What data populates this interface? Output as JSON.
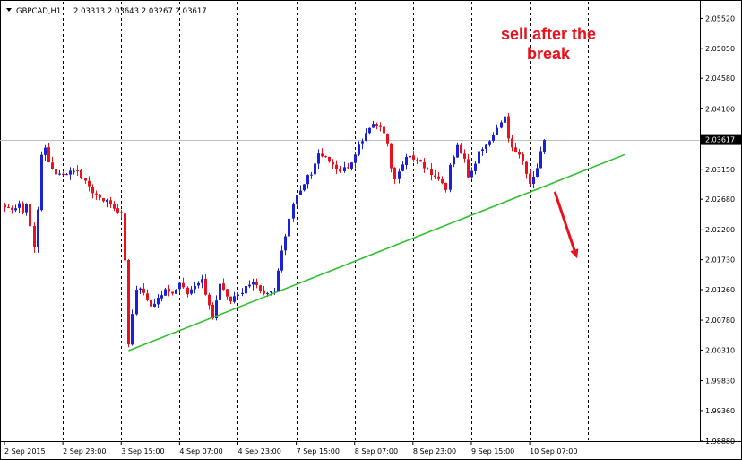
{
  "header": {
    "symbol": "GBPCAD,H1",
    "ohlc": "2.03313 2.03643 2.03267 2.03617"
  },
  "colors": {
    "bull": "#1a22d8",
    "bear": "#e8111c",
    "trendline": "#2ec12e",
    "annotation": "#e8111c",
    "axis": "#000000",
    "grid": "#000000",
    "price_line": "#c0c0c0"
  },
  "chart_data": {
    "type": "candlestick",
    "title": "",
    "xlabel": "",
    "ylabel": "",
    "ylim": [
      1.9888,
      2.0578
    ],
    "y_ticks": [
      "2.05520",
      "2.05050",
      "2.04580",
      "2.04100",
      "2.03617",
      "2.03150",
      "2.02680",
      "2.02200",
      "2.01730",
      "2.01260",
      "2.00780",
      "2.00310",
      "1.99830",
      "1.99360",
      "1.98880"
    ],
    "x_ticks": [
      "2 Sep 2015",
      "2 Sep 23:00",
      "3 Sep 15:00",
      "4 Sep 07:00",
      "4 Sep 23:00",
      "7 Sep 15:00",
      "8 Sep 07:00",
      "8 Sep 23:00",
      "9 Sep 15:00",
      "10 Sep 07:00"
    ],
    "x_tick_positions": [
      0,
      16,
      32,
      48,
      64,
      80,
      96,
      112,
      128,
      144
    ],
    "current_price": 2.03617,
    "anchors": [
      [
        0,
        2.0255
      ],
      [
        2,
        2.025
      ],
      [
        4,
        2.0262
      ],
      [
        5,
        2.025
      ],
      [
        6,
        2.026
      ],
      [
        8,
        2.0195
      ],
      [
        9,
        2.0255
      ],
      [
        10,
        2.034
      ],
      [
        11,
        2.035
      ],
      [
        12,
        2.0325
      ],
      [
        14,
        2.031
      ],
      [
        16,
        2.0305
      ],
      [
        18,
        2.0315
      ],
      [
        20,
        2.031
      ],
      [
        22,
        2.0295
      ],
      [
        24,
        2.0275
      ],
      [
        26,
        2.027
      ],
      [
        28,
        2.0265
      ],
      [
        30,
        2.0255
      ],
      [
        32,
        2.0245
      ],
      [
        33,
        2.0175
      ],
      [
        34,
        2.004
      ],
      [
        35,
        2.0085
      ],
      [
        36,
        2.0125
      ],
      [
        37,
        2.013
      ],
      [
        38,
        2.012
      ],
      [
        39,
        2.011
      ],
      [
        40,
        2.01
      ],
      [
        42,
        2.0115
      ],
      [
        44,
        2.0125
      ],
      [
        46,
        2.0122
      ],
      [
        48,
        2.0135
      ],
      [
        50,
        2.012
      ],
      [
        52,
        2.013
      ],
      [
        54,
        2.0145
      ],
      [
        55,
        2.012
      ],
      [
        56,
        2.01
      ],
      [
        57,
        2.008
      ],
      [
        58,
        2.011
      ],
      [
        59,
        2.0135
      ],
      [
        60,
        2.0125
      ],
      [
        62,
        2.011
      ],
      [
        64,
        2.0115
      ],
      [
        66,
        2.013
      ],
      [
        68,
        2.014
      ],
      [
        70,
        2.0125
      ],
      [
        72,
        2.012
      ],
      [
        74,
        2.0125
      ],
      [
        76,
        2.0185
      ],
      [
        78,
        2.024
      ],
      [
        80,
        2.0275
      ],
      [
        82,
        2.0295
      ],
      [
        84,
        2.031
      ],
      [
        86,
        2.034
      ],
      [
        88,
        2.0335
      ],
      [
        90,
        2.032
      ],
      [
        92,
        2.0315
      ],
      [
        94,
        2.0315
      ],
      [
        96,
        2.034
      ],
      [
        98,
        2.036
      ],
      [
        100,
        2.038
      ],
      [
        102,
        2.0385
      ],
      [
        104,
        2.037
      ],
      [
        105,
        2.0355
      ],
      [
        106,
        2.032
      ],
      [
        107,
        2.03
      ],
      [
        108,
        2.031
      ],
      [
        110,
        2.0335
      ],
      [
        112,
        2.033
      ],
      [
        114,
        2.0325
      ],
      [
        116,
        2.0315
      ],
      [
        118,
        2.03
      ],
      [
        120,
        2.0295
      ],
      [
        121,
        2.0285
      ],
      [
        122,
        2.0325
      ],
      [
        124,
        2.035
      ],
      [
        126,
        2.033
      ],
      [
        127,
        2.0305
      ],
      [
        128,
        2.031
      ],
      [
        130,
        2.034
      ],
      [
        132,
        2.0355
      ],
      [
        134,
        2.037
      ],
      [
        136,
        2.0385
      ],
      [
        137,
        2.0395
      ],
      [
        138,
        2.036
      ],
      [
        140,
        2.0345
      ],
      [
        142,
        2.033
      ],
      [
        143,
        2.031
      ],
      [
        144,
        2.029
      ],
      [
        145,
        2.03
      ],
      [
        146,
        2.032
      ],
      [
        147,
        2.034
      ],
      [
        148,
        2.0361
      ]
    ],
    "trendline": [
      [
        34,
        2.003
      ],
      [
        170,
        2.0338
      ]
    ],
    "annotations": [
      {
        "type": "text",
        "lines": [
          "sell after the",
          "break"
        ]
      },
      {
        "type": "arrow",
        "from": [
          151,
          2.0278
        ],
        "to": [
          157,
          2.0175
        ]
      }
    ]
  }
}
